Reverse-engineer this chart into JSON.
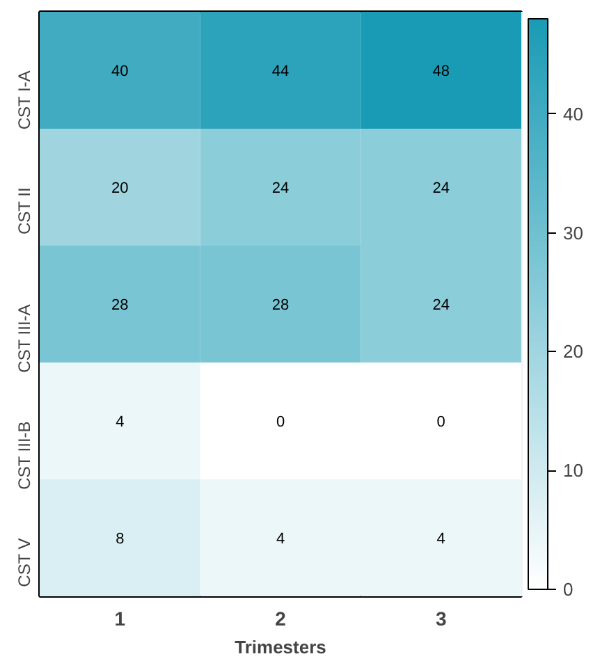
{
  "chart_data": {
    "type": "heatmap",
    "xlabel": "Trimesters",
    "categories": [
      "1",
      "2",
      "3"
    ],
    "y_categories": [
      "CST I-A",
      "CST II",
      "CST III-A",
      "CST III-B",
      "CST V"
    ],
    "cells": [
      [
        40,
        44,
        48
      ],
      [
        20,
        24,
        24
      ],
      [
        28,
        28,
        24
      ],
      [
        4,
        0,
        0
      ],
      [
        8,
        4,
        4
      ]
    ],
    "clim": [
      0,
      48
    ],
    "cticks": [
      0,
      10,
      20,
      30,
      40
    ],
    "data_labels": true,
    "grid": false
  }
}
